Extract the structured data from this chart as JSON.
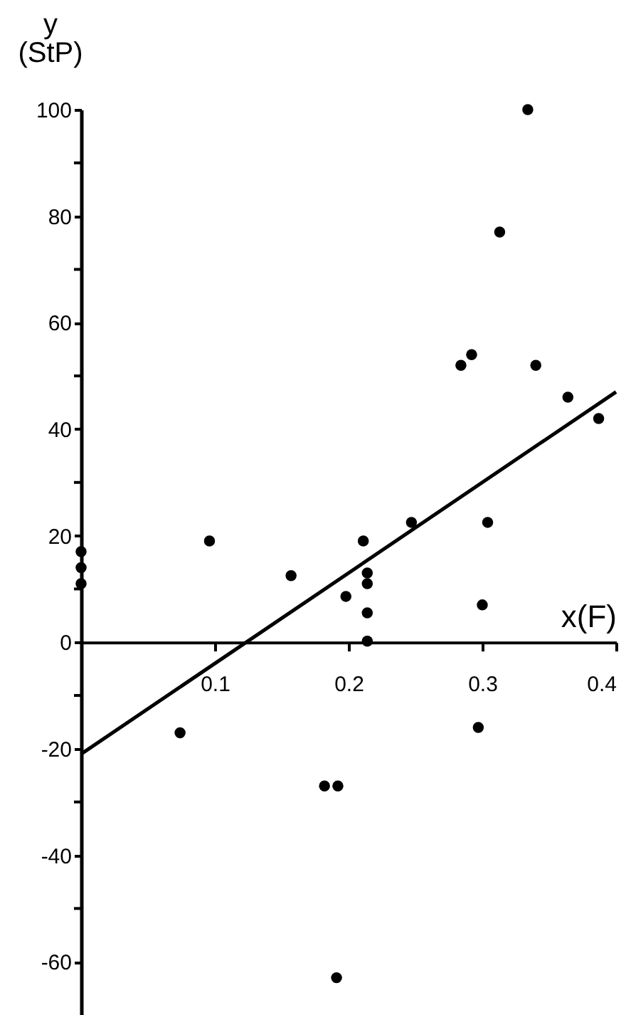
{
  "chart_data": {
    "type": "scatter",
    "xlabel": "x(F)",
    "ylabel": "y (StP)",
    "xlim": [
      0,
      0.4
    ],
    "ylim": [
      -70,
      100
    ],
    "xticks": [
      0.1,
      0.2,
      0.3,
      0.4
    ],
    "yticks": [
      100,
      {
        "value": 90,
        "label": null
      },
      80,
      {
        "value": 70,
        "label": null
      },
      60,
      {
        "value": 50,
        "label": null
      },
      40,
      {
        "value": 30,
        "label": null
      },
      20,
      {
        "value": 10,
        "label": null
      },
      0,
      {
        "value": -10,
        "label": null
      },
      -20,
      {
        "value": -30,
        "label": null
      },
      -40,
      {
        "value": -50,
        "label": null
      },
      -60
    ],
    "grid": false,
    "series": [
      {
        "type": "scatter",
        "marker": "circle",
        "color": "#000000",
        "x": [
          0,
          0,
          0,
          0.096,
          0.157,
          0.198,
          0.211,
          0.214,
          0.214,
          0.214,
          0.214,
          0.247,
          0.284,
          0.292,
          0.3,
          0.304,
          0.34,
          0.364,
          0.387,
          0.334,
          0.313,
          0.074,
          0.297,
          0.182,
          0.192,
          0.191
        ],
        "values": [
          17,
          14,
          11,
          19,
          12.5,
          8.6,
          19,
          13,
          11,
          5.5,
          0.2,
          22.5,
          52,
          54,
          7,
          22.5,
          52,
          46,
          42,
          100,
          77,
          -17,
          -16,
          -27,
          -27,
          -63
        ]
      },
      {
        "type": "line",
        "marker": "none",
        "color": "#000000",
        "line_style": "solid",
        "x": [
          0,
          0.4
        ],
        "values": [
          -21,
          47
        ]
      }
    ]
  }
}
